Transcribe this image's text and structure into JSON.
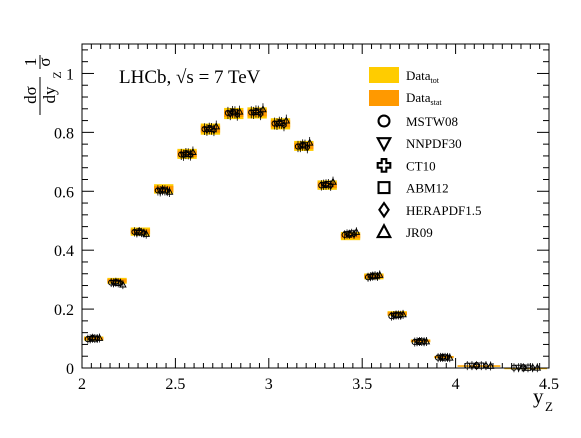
{
  "chart_data": {
    "type": "scatter",
    "annotation": {
      "experiment": "LHCb, ",
      "sqrt": "√s",
      "energy": " = 7 TeV"
    },
    "ylabel": {
      "frac_num": "1",
      "frac_den": "σ",
      "num": "dσ",
      "den": "dy",
      "sub": "Z"
    },
    "xlabel": {
      "main": "y",
      "sub": "Z"
    },
    "xlim": [
      2.0,
      4.5
    ],
    "ylim": [
      0.0,
      1.1
    ],
    "xticks": [
      "2",
      "2.5",
      "3",
      "3.5",
      "4",
      "4.5"
    ],
    "yticks": [
      "0",
      "0.2",
      "0.4",
      "0.6",
      "0.8",
      "1"
    ],
    "bins": [
      2.0,
      2.125,
      2.25,
      2.375,
      2.5,
      2.625,
      2.75,
      2.875,
      3.0,
      3.125,
      3.25,
      3.375,
      3.5,
      3.625,
      3.75,
      3.875,
      4.0,
      4.25,
      4.5
    ],
    "data": {
      "values": [
        0.1,
        0.296,
        0.463,
        0.608,
        0.727,
        0.811,
        0.864,
        0.866,
        0.829,
        0.754,
        0.621,
        0.448,
        0.311,
        0.185,
        0.092,
        0.037,
        0.007,
        0.0
      ],
      "tot_err": [
        0.007,
        0.01,
        0.014,
        0.016,
        0.017,
        0.019,
        0.019,
        0.019,
        0.019,
        0.017,
        0.016,
        0.014,
        0.01,
        0.008,
        0.005,
        0.004,
        0.002,
        0.001
      ],
      "stat_err": [
        0.004,
        0.006,
        0.008,
        0.01,
        0.011,
        0.012,
        0.012,
        0.012,
        0.012,
        0.011,
        0.01,
        0.008,
        0.006,
        0.005,
        0.004,
        0.003,
        0.002,
        0.001
      ]
    },
    "theory": [
      {
        "name": "MSTW08",
        "marker": "circle",
        "values": [
          0.098,
          0.29,
          0.462,
          0.603,
          0.725,
          0.811,
          0.866,
          0.868,
          0.83,
          0.752,
          0.62,
          0.452,
          0.308,
          0.176,
          0.088,
          0.035,
          0.008,
          0.001
        ]
      },
      {
        "name": "NNPDF30",
        "marker": "triangle-down",
        "values": [
          0.099,
          0.289,
          0.459,
          0.6,
          0.722,
          0.808,
          0.862,
          0.866,
          0.828,
          0.752,
          0.622,
          0.455,
          0.31,
          0.178,
          0.089,
          0.036,
          0.008,
          0.001
        ]
      },
      {
        "name": "CT10",
        "marker": "cross",
        "values": [
          0.101,
          0.291,
          0.463,
          0.604,
          0.728,
          0.813,
          0.869,
          0.871,
          0.833,
          0.757,
          0.623,
          0.454,
          0.312,
          0.18,
          0.09,
          0.036,
          0.008,
          0.001
        ]
      },
      {
        "name": "ABM12",
        "marker": "square",
        "values": [
          0.1,
          0.289,
          0.46,
          0.603,
          0.727,
          0.812,
          0.868,
          0.87,
          0.832,
          0.756,
          0.624,
          0.457,
          0.313,
          0.18,
          0.09,
          0.036,
          0.008,
          0.001
        ]
      },
      {
        "name": "HERAPDF1.5",
        "marker": "diamond",
        "values": [
          0.1,
          0.288,
          0.458,
          0.601,
          0.723,
          0.807,
          0.86,
          0.862,
          0.824,
          0.748,
          0.619,
          0.454,
          0.311,
          0.179,
          0.089,
          0.036,
          0.008,
          0.001
        ]
      },
      {
        "name": "JR09",
        "marker": "triangle-up",
        "values": [
          0.102,
          0.283,
          0.455,
          0.598,
          0.733,
          0.82,
          0.87,
          0.878,
          0.84,
          0.765,
          0.632,
          0.462,
          0.316,
          0.182,
          0.09,
          0.035,
          0.007,
          0.001
        ]
      }
    ],
    "legend": {
      "placement": "top-right",
      "data_tot": {
        "main": "Data",
        "sub": "tot"
      },
      "data_stat": {
        "main": "Data",
        "sub": "stat"
      }
    },
    "colors": {
      "tot_band": "#ffcc00",
      "stat_band": "#ff9900",
      "markers": "#000000"
    }
  }
}
